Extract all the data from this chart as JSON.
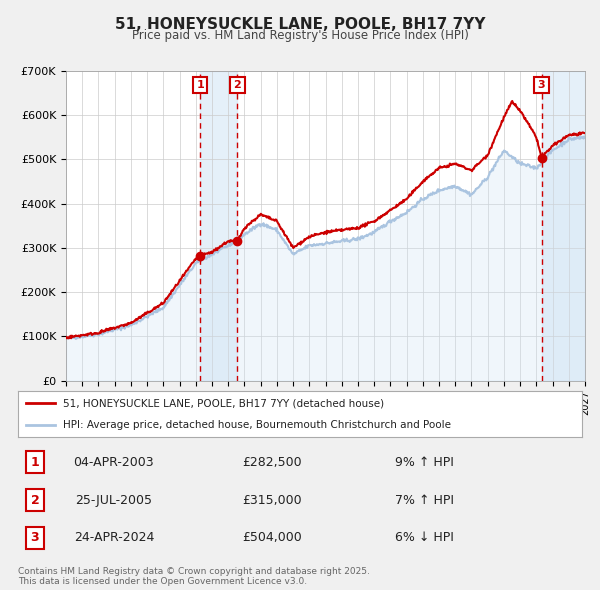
{
  "title": "51, HONEYSUCKLE LANE, POOLE, BH17 7YY",
  "subtitle": "Price paid vs. HM Land Registry's House Price Index (HPI)",
  "ylim": [
    0,
    700000
  ],
  "xlim": [
    1995.0,
    2027.0
  ],
  "yticks": [
    0,
    100000,
    200000,
    300000,
    400000,
    500000,
    600000,
    700000
  ],
  "ytick_labels": [
    "£0",
    "£100K",
    "£200K",
    "£300K",
    "£400K",
    "£500K",
    "£600K",
    "£700K"
  ],
  "xticks": [
    1995,
    1996,
    1997,
    1998,
    1999,
    2000,
    2001,
    2002,
    2003,
    2004,
    2005,
    2006,
    2007,
    2008,
    2009,
    2010,
    2011,
    2012,
    2013,
    2014,
    2015,
    2016,
    2017,
    2018,
    2019,
    2020,
    2021,
    2022,
    2023,
    2024,
    2025,
    2026,
    2027
  ],
  "hpi_color": "#aac4e0",
  "price_color": "#cc0000",
  "dot_color": "#cc0000",
  "sale_dates": [
    2003.27,
    2005.57,
    2024.32
  ],
  "sale_prices": [
    282500,
    315000,
    504000
  ],
  "sale_labels": [
    "1",
    "2",
    "3"
  ],
  "vline_color": "#cc0000",
  "shade_color": "#d0e4f5",
  "legend_price_label": "51, HONEYSUCKLE LANE, POOLE, BH17 7YY (detached house)",
  "legend_hpi_label": "HPI: Average price, detached house, Bournemouth Christchurch and Poole",
  "table_rows": [
    [
      "1",
      "04-APR-2003",
      "£282,500",
      "9% ↑ HPI"
    ],
    [
      "2",
      "25-JUL-2005",
      "£315,000",
      "7% ↑ HPI"
    ],
    [
      "3",
      "24-APR-2024",
      "£504,000",
      "6% ↓ HPI"
    ]
  ],
  "footnote": "Contains HM Land Registry data © Crown copyright and database right 2025.\nThis data is licensed under the Open Government Licence v3.0.",
  "background_color": "#f0f0f0",
  "plot_bg_color": "#ffffff",
  "grid_color": "#cccccc"
}
